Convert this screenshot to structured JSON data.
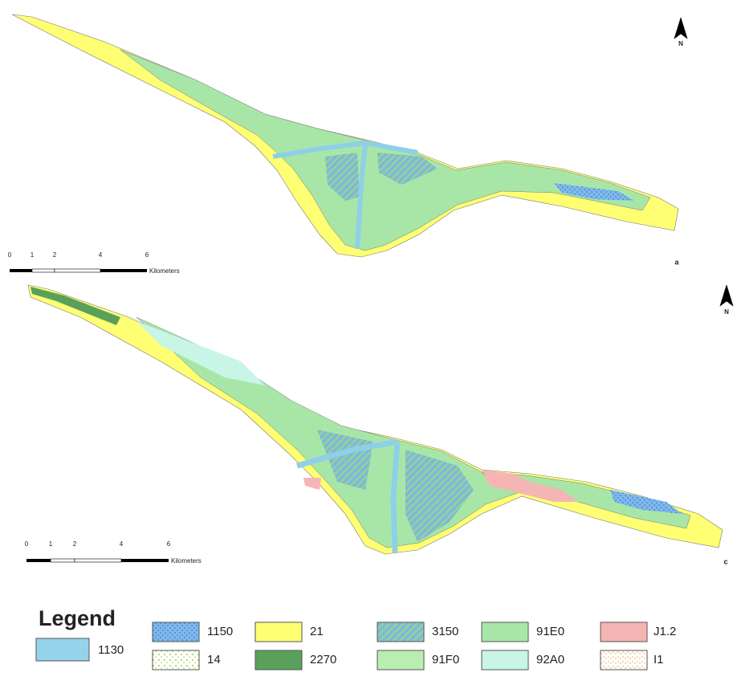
{
  "maps": [
    {
      "label": "a",
      "north": "N",
      "scale_bar": {
        "ticks": [
          "0",
          "1",
          "2",
          "4",
          "6"
        ],
        "unit": "Kilometers"
      }
    },
    {
      "label": "c",
      "north": "N",
      "scale_bar": {
        "ticks": [
          "0",
          "1",
          "2",
          "4",
          "6"
        ],
        "unit": "Kilometers"
      }
    }
  ],
  "legend": {
    "title": "Legend",
    "items": [
      "1130",
      "1150",
      "14",
      "21",
      "2270",
      "3150",
      "91F0",
      "91E0",
      "92A0",
      "J1.2",
      "I1"
    ]
  }
}
